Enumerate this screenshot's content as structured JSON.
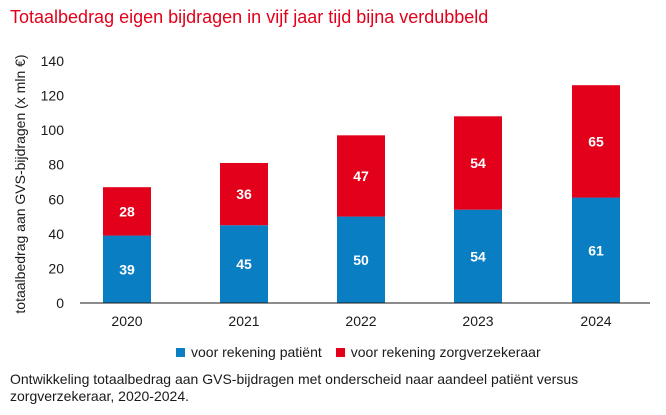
{
  "chart_data": {
    "type": "bar",
    "stacked": true,
    "title": "Totaalbedrag eigen bijdragen in vijf jaar tijd bijna verdubbeld",
    "xlabel": "",
    "ylabel": "totaalbedrag aan GVS-bijdragen (x mln €)",
    "ylim": [
      0,
      140
    ],
    "yticks": [
      0,
      20,
      40,
      60,
      80,
      100,
      120,
      140
    ],
    "categories": [
      "2020",
      "2021",
      "2022",
      "2023",
      "2024"
    ],
    "series": [
      {
        "name": "voor rekening patiënt",
        "values": [
          39,
          45,
          50,
          54,
          61
        ],
        "color": "#0a7ec2"
      },
      {
        "name": "voor rekening zorgverzekeraar",
        "values": [
          28,
          36,
          47,
          54,
          65
        ],
        "color": "#e2001a"
      }
    ],
    "grid": false,
    "legend_position": "bottom-center"
  },
  "caption": "Ontwikkeling totaalbedrag aan GVS-bijdragen met onderscheid naar aandeel patiënt versus zorgverzekeraar, 2020-2024."
}
